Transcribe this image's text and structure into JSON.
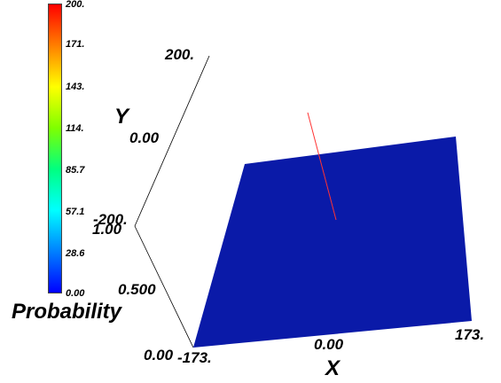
{
  "colorbar": {
    "title": "Probability",
    "tick_labels": [
      "200.",
      "171.",
      "143.",
      "114.",
      "85.7",
      "57.1",
      "28.6",
      "0.00"
    ],
    "gradient": [
      "#ff0000",
      "#ff7f00",
      "#ffff00",
      "#7fff00",
      "#00ff80",
      "#00ffff",
      "#0080ff",
      "#0000ff"
    ]
  },
  "axes": {
    "x": {
      "title": "X",
      "tick_labels": [
        "-173.",
        "0.00",
        "173."
      ]
    },
    "y": {
      "title": "Y",
      "tick_labels": [
        "-200.",
        "0.00",
        "200."
      ]
    },
    "z": {
      "tick_labels": [
        "0.00",
        "0.500",
        "1.00"
      ]
    }
  },
  "surface": {
    "color": "#0a1aa8"
  },
  "line": {
    "color": "#ff3333"
  },
  "axis_line_color": "#000000"
}
